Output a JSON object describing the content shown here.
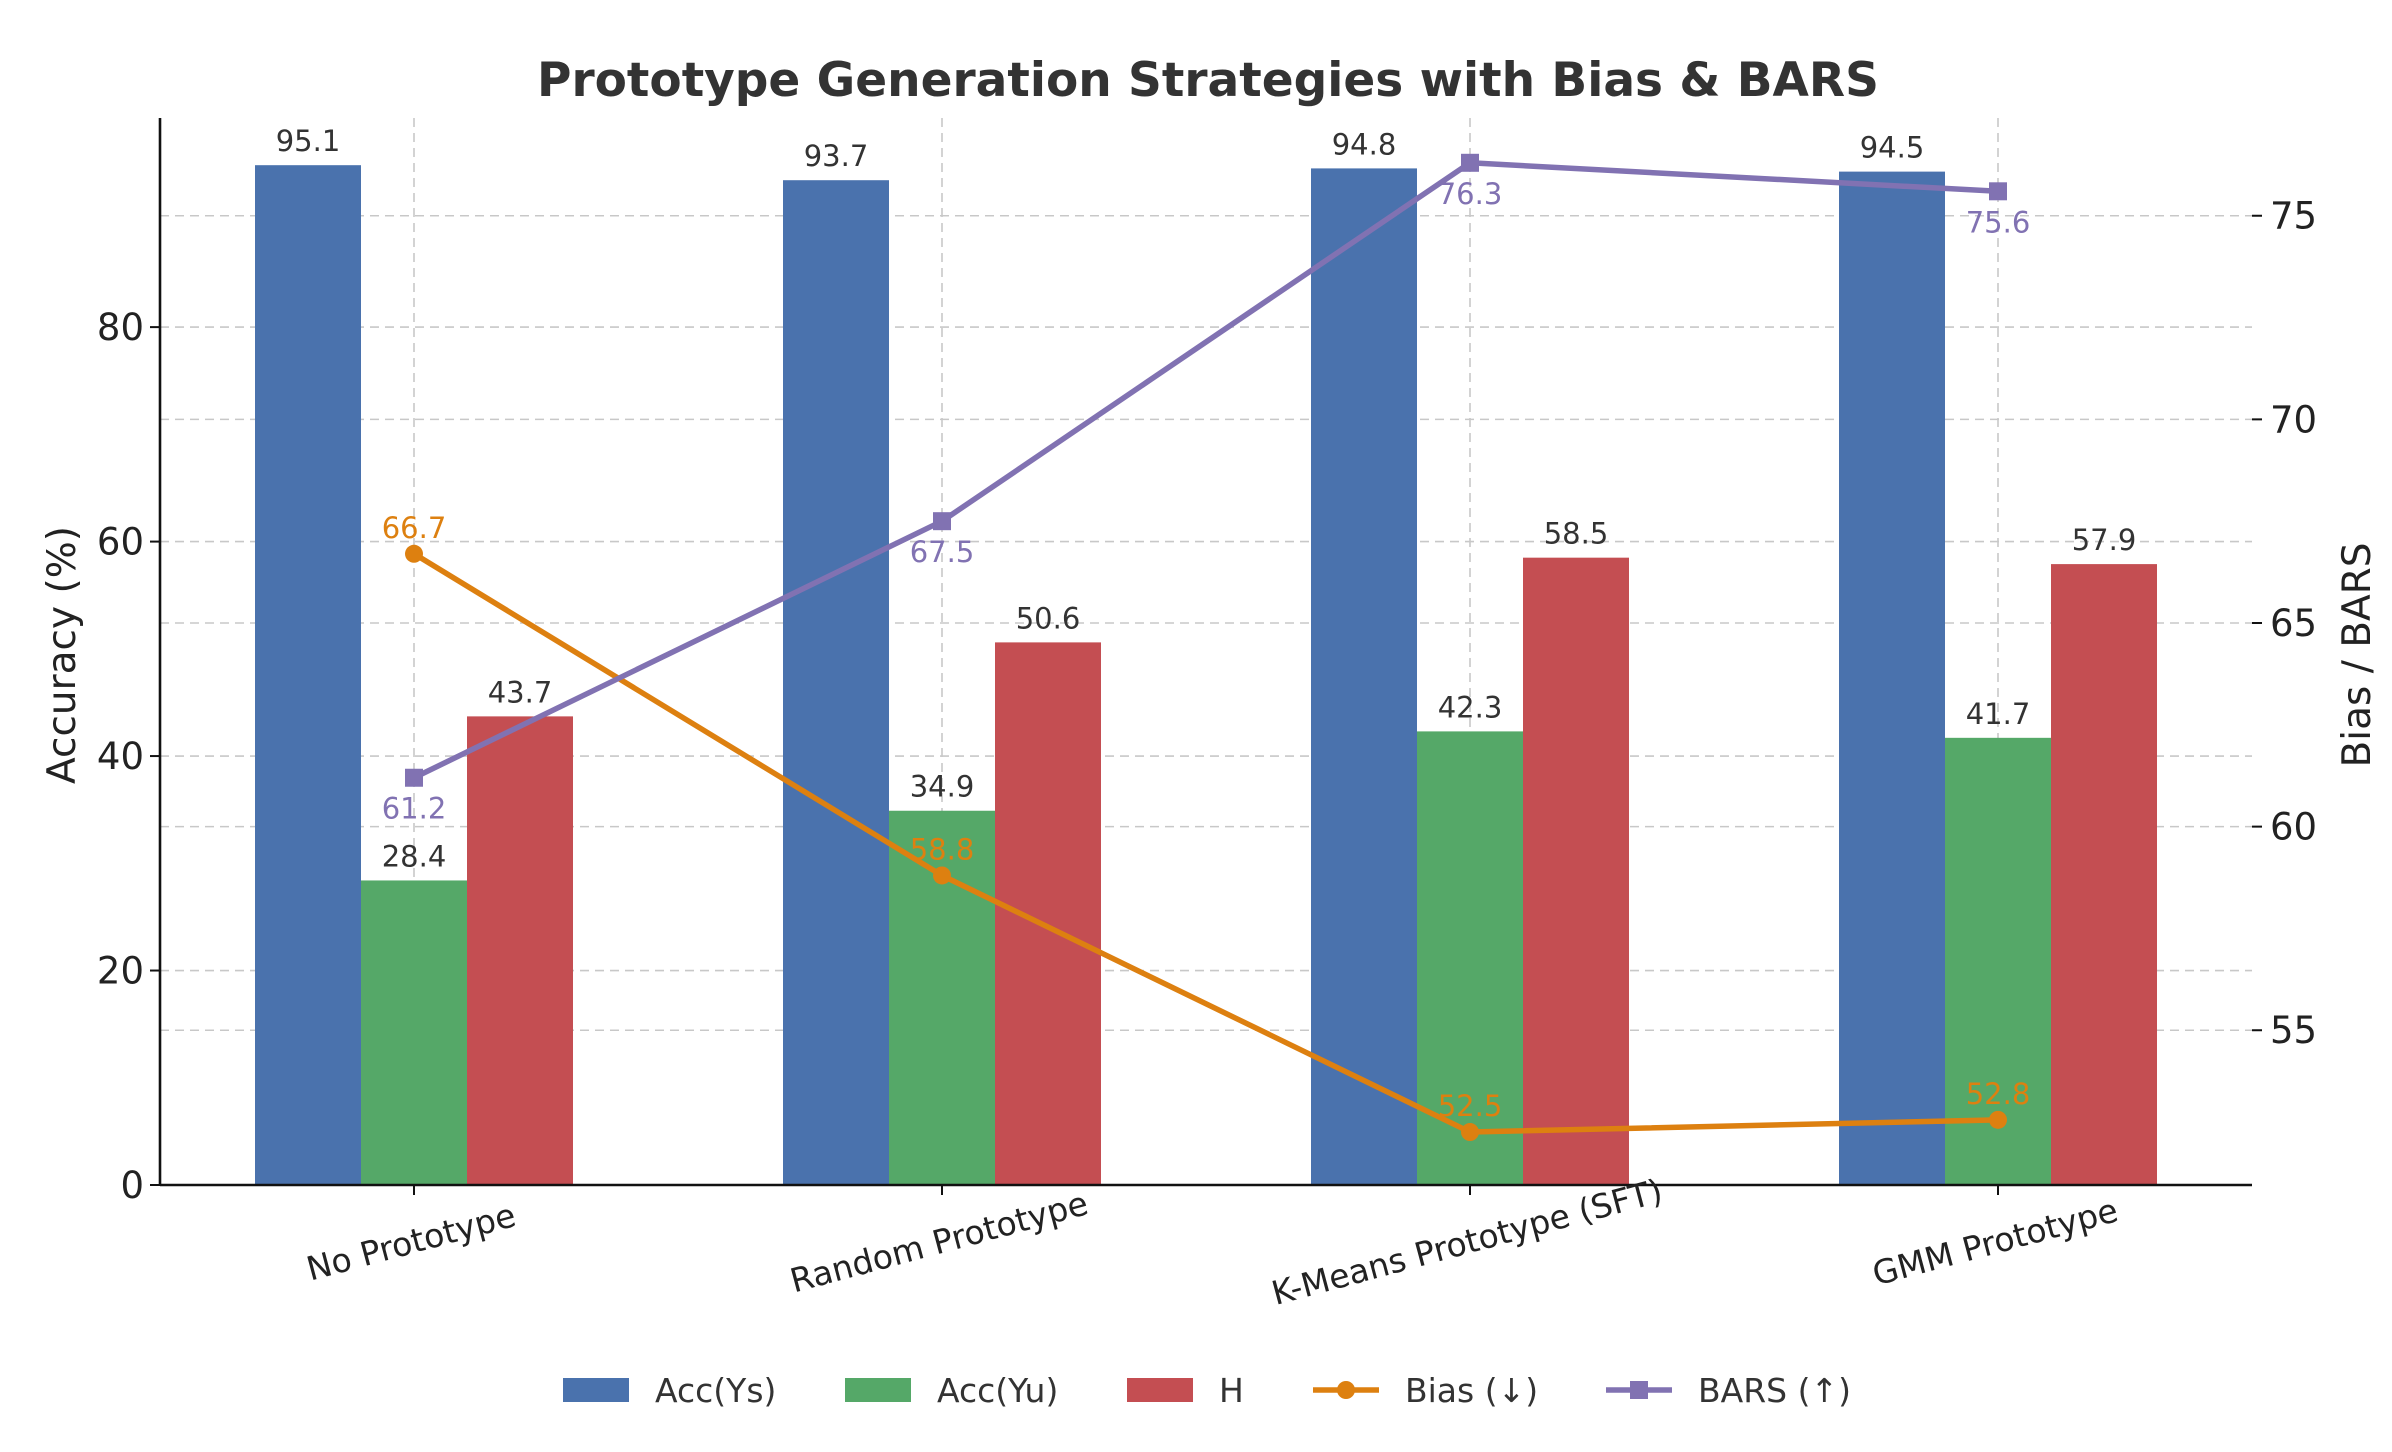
{
  "chart_data": {
    "type": "bar",
    "title": "Prototype Generation Strategies with Bias & BARS",
    "xlabel": "",
    "ylabel": "Accuracy (%)",
    "ylabel_right": "Bias / BARS",
    "categories": [
      "No Prototype",
      "Random Prototype",
      "K-Means Prototype (SFT)",
      "GMM Prototype"
    ],
    "ylim": [
      0,
      99.5
    ],
    "ylim_right": [
      51.2,
      77.4
    ],
    "yticks": [
      0,
      20,
      40,
      60,
      80
    ],
    "yticks_right": [
      55,
      60,
      65,
      70,
      75
    ],
    "ytick_labels": [
      "0",
      "20",
      "40",
      "60",
      "80"
    ],
    "ytick_labels_right": [
      "55",
      "60",
      "65",
      "70",
      "75"
    ],
    "grid": true,
    "legend_position": "bottom-center",
    "series": [
      {
        "name": "Acc(Ys)",
        "type": "bar",
        "axis": "left",
        "color": "#4a72ad",
        "values": [
          95.1,
          93.7,
          94.8,
          94.5
        ],
        "labels": [
          "95.1",
          "93.7",
          "94.8",
          "94.5"
        ]
      },
      {
        "name": "Acc(Yu)",
        "type": "bar",
        "axis": "left",
        "color": "#55a868",
        "values": [
          28.4,
          34.9,
          42.3,
          41.7
        ],
        "labels": [
          "28.4",
          "34.9",
          "42.3",
          "41.7"
        ]
      },
      {
        "name": "H",
        "type": "bar",
        "axis": "left",
        "color": "#c44e52",
        "values": [
          43.7,
          50.6,
          58.5,
          57.9
        ],
        "labels": [
          "43.7",
          "50.6",
          "58.5",
          "57.9"
        ]
      },
      {
        "name": "Bias (↓)",
        "type": "line",
        "axis": "right",
        "color": "#dd8010",
        "marker": "circle",
        "values": [
          66.7,
          58.8,
          52.5,
          52.8
        ],
        "labels": [
          "66.7",
          "58.8",
          "52.5",
          "52.8"
        ]
      },
      {
        "name": "BARS (↑)",
        "type": "line",
        "axis": "right",
        "color": "#8172b2",
        "marker": "square",
        "values": [
          61.2,
          67.5,
          76.3,
          75.6
        ],
        "labels": [
          "61.2",
          "67.5",
          "76.3",
          "75.6"
        ]
      }
    ]
  }
}
